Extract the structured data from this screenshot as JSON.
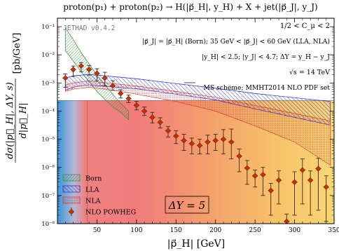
{
  "chart_data": {
    "type": "scatter",
    "title": "proton(p₁) + proton(p₂) → H(|p⃗_H|, y_H) + X + jet(|p⃗_J|, y_J)",
    "xlabel": "|p⃗_H| [GeV]",
    "ylabel_numer": "dσ(|p⃗_H|, ΔY, s)",
    "ylabel_denom": "d|p⃗_H|",
    "ylabel_unit": "[pb/GeV]",
    "xlim": [
      0,
      350
    ],
    "ylim_exp": [
      -8,
      -0.7
    ],
    "log_y": true,
    "x_ticks": [
      50,
      100,
      150,
      200,
      250,
      300,
      350
    ],
    "y_ticks": [
      {
        "exp": -1,
        "label": "10⁻¹"
      },
      {
        "exp": -2,
        "label": "10⁻²"
      },
      {
        "exp": -3,
        "label": "10⁻³"
      },
      {
        "exp": -4,
        "label": "10⁻⁴"
      },
      {
        "exp": -5,
        "label": "10⁻⁵"
      },
      {
        "exp": -6,
        "label": "10⁻⁶"
      },
      {
        "exp": -7,
        "label": "10⁻⁷"
      },
      {
        "exp": -8,
        "label": "10⁻⁸"
      }
    ],
    "watermark": "JETHAD v0.4.2",
    "annotations": [
      "1/2 < C_μ < 2",
      "|p⃗_J| = |p⃗_H| (Born); 35 GeV < |p⃗_J| < 60 GeV (LLA, NLA)",
      "|y_H| < 2.5; |y_J| < 4.7; ΔY = y_H − y_J",
      "√s = 14 TeV",
      "MS scheme; MMHT2014 NLO PDF set"
    ],
    "panel_label": "ΔY = 5",
    "legend": [
      "Born",
      "LLA",
      "NLA",
      "NLO POWHEG"
    ],
    "legend_position": "bottom-left",
    "colors": {
      "born": "#2e8b2e",
      "lla": "#2323c8",
      "nla": "#d23a3a",
      "powheg_point": "#c83200",
      "powheg_bar": "#3a2a10"
    },
    "bands": [
      {
        "name": "Born",
        "x": [
          10,
          20,
          30,
          40,
          50,
          60,
          70,
          80,
          90
        ],
        "y_low": [
          0.014,
          0.006,
          0.0025,
          0.0011,
          0.0005,
          0.00026,
          0.00014,
          9e-05,
          5e-05
        ],
        "y_high": [
          0.09,
          0.035,
          0.012,
          0.0048,
          0.0019,
          0.0009,
          0.0004,
          0.00019,
          0.0001
        ]
      },
      {
        "name": "LLA",
        "x": [
          10,
          20,
          30,
          40,
          50,
          70,
          100,
          150,
          200,
          250,
          300,
          345
        ],
        "y_low": [
          0.00055,
          0.0007,
          0.0008,
          0.00085,
          0.0008,
          0.00072,
          0.00062,
          0.0004,
          0.00025,
          0.00012,
          6e-05,
          3.2e-05
        ],
        "y_high": [
          0.0015,
          0.0018,
          0.0019,
          0.002,
          0.0019,
          0.0017,
          0.0014,
          0.00095,
          0.00065,
          0.00042,
          0.0003,
          0.00022
        ]
      },
      {
        "name": "NLA",
        "x": [
          10,
          20,
          30,
          40,
          50,
          70,
          100,
          150,
          200,
          250,
          300,
          345
        ],
        "y_low": [
          0.0005,
          0.0006,
          0.00065,
          0.0007,
          0.00065,
          0.00055,
          0.0004,
          0.00022,
          0.0001,
          3e-05,
          8e-06,
          1.2e-06
        ],
        "y_high": [
          0.00085,
          0.001,
          0.0011,
          0.0012,
          0.0011,
          0.00095,
          0.00078,
          0.0005,
          0.00031,
          0.00016,
          8.2e-05,
          4.5e-05
        ]
      }
    ],
    "series": [
      {
        "name": "NLO POWHEG",
        "x": [
          10,
          20,
          30,
          40,
          50,
          60,
          70,
          80,
          90,
          100,
          110,
          120,
          130,
          140,
          150,
          160,
          170,
          180,
          190,
          200,
          210,
          220,
          230,
          240,
          250,
          260,
          270,
          280,
          290,
          300,
          310,
          320,
          330,
          340
        ],
        "y": [
          0.0015,
          0.003,
          0.004,
          0.003,
          0.0022,
          0.0015,
          0.0008,
          0.00042,
          0.00028,
          0.00016,
          0.0001,
          6e-05,
          4e-05,
          2e-05,
          1.3e-05,
          9e-06,
          7e-06,
          6e-06,
          8e-06,
          9e-06,
          1e-05,
          8e-06,
          2.5e-06,
          9.5e-07,
          5e-07,
          5.5e-07,
          1.5e-07,
          3.5e-07,
          1.2e-08,
          3e-07,
          8e-07,
          3.5e-07,
          9e-07,
          2e-07
        ],
        "y_err_low": [
          0.0008,
          0.0013,
          0.0015,
          0.0011,
          0.001,
          0.0007,
          0.00025,
          0.00013,
          8e-05,
          5e-05,
          3e-05,
          2.2e-05,
          1.5e-05,
          8e-06,
          6e-06,
          5e-06,
          4e-06,
          3e-06,
          5e-06,
          5e-06,
          7e-06,
          6e-06,
          1.8e-06,
          7e-07,
          3e-07,
          4.5e-07,
          1.3e-07,
          3e-07,
          9e-09,
          2.8e-07,
          7.5e-07,
          3.3e-07,
          8.7e-07,
          1.9e-07
        ],
        "y_err_high": [
          0.0006,
          0.001,
          0.0013,
          0.0012,
          0.001,
          0.0009,
          0.0004,
          0.00015,
          9e-05,
          6e-05,
          4e-05,
          3e-05,
          1.8e-05,
          8e-06,
          7e-06,
          6e-06,
          4e-06,
          4e-06,
          6e-06,
          6e-06,
          1.2e-05,
          1.5e-05,
          2e-06,
          8e-07,
          3e-07,
          4.5e-07,
          1.2e-07,
          4e-07,
          1e-08,
          4e-07,
          1.2e-06,
          4e-07,
          1.2e-06,
          3e-07
        ]
      }
    ]
  }
}
